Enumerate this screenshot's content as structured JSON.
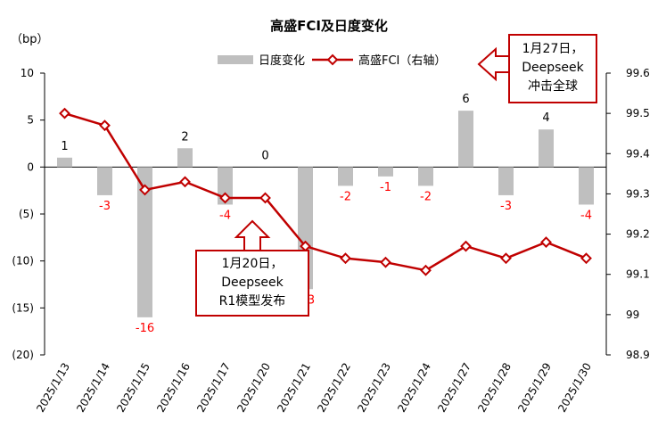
{
  "chart_data": {
    "type": "bar+line",
    "title": "高盛FCI及日度变化",
    "left_axis_unit": "（bp）",
    "categories": [
      "2025/1/13",
      "2025/1/14",
      "2025/1/15",
      "2025/1/16",
      "2025/1/17",
      "2025/1/20",
      "2025/1/21",
      "2025/1/22",
      "2025/1/23",
      "2025/1/24",
      "2025/1/27",
      "2025/1/28",
      "2025/1/29",
      "2025/1/30"
    ],
    "bar_series": {
      "name": "日度变化",
      "axis": "left",
      "values": [
        1,
        -3,
        -16,
        2,
        -4,
        0,
        -13,
        -2,
        -1,
        -2,
        6,
        -3,
        4,
        -4
      ],
      "labels": [
        "1",
        "-3",
        "-16",
        "2",
        "-4",
        "0",
        "-13",
        "-2",
        "-1",
        "-2",
        "6",
        "-3",
        "4",
        "-4"
      ],
      "color": "#bfbfbf"
    },
    "line_series": {
      "name": "高盛FCI（右轴）",
      "axis": "right",
      "values": [
        99.5,
        99.47,
        99.31,
        99.33,
        99.29,
        99.29,
        99.17,
        99.14,
        99.13,
        99.11,
        99.17,
        99.14,
        99.18,
        99.14
      ],
      "color": "#c00000"
    },
    "left_axis": {
      "ylim": [
        -20,
        10
      ],
      "ticks": [
        10,
        5,
        0,
        -5,
        -10,
        -15,
        -20
      ],
      "tick_labels": [
        "10",
        "5",
        "0",
        "(5)",
        "(10)",
        "(15)",
        "(20)"
      ]
    },
    "right_axis": {
      "ylim": [
        98.9,
        99.6
      ],
      "ticks": [
        99.6,
        99.5,
        99.4,
        99.3,
        99.2,
        99.1,
        99,
        98.9
      ],
      "tick_labels": [
        "99.6",
        "99.5",
        "99.4",
        "99.3",
        "99.2",
        "99.1",
        "99",
        "98.9"
      ]
    },
    "legend_position": "top"
  },
  "callouts": {
    "deepseek_r1": {
      "line1": "1月20日，",
      "line2": "Deepseek",
      "line3": "R1模型发布"
    },
    "deepseek_global": {
      "line1": "1月27日，",
      "line2": "Deepseek",
      "line3": "冲击全球"
    }
  },
  "colors": {
    "accent": "#c00000",
    "bar": "#bfbfbf",
    "label_neg": "#ff0000"
  }
}
